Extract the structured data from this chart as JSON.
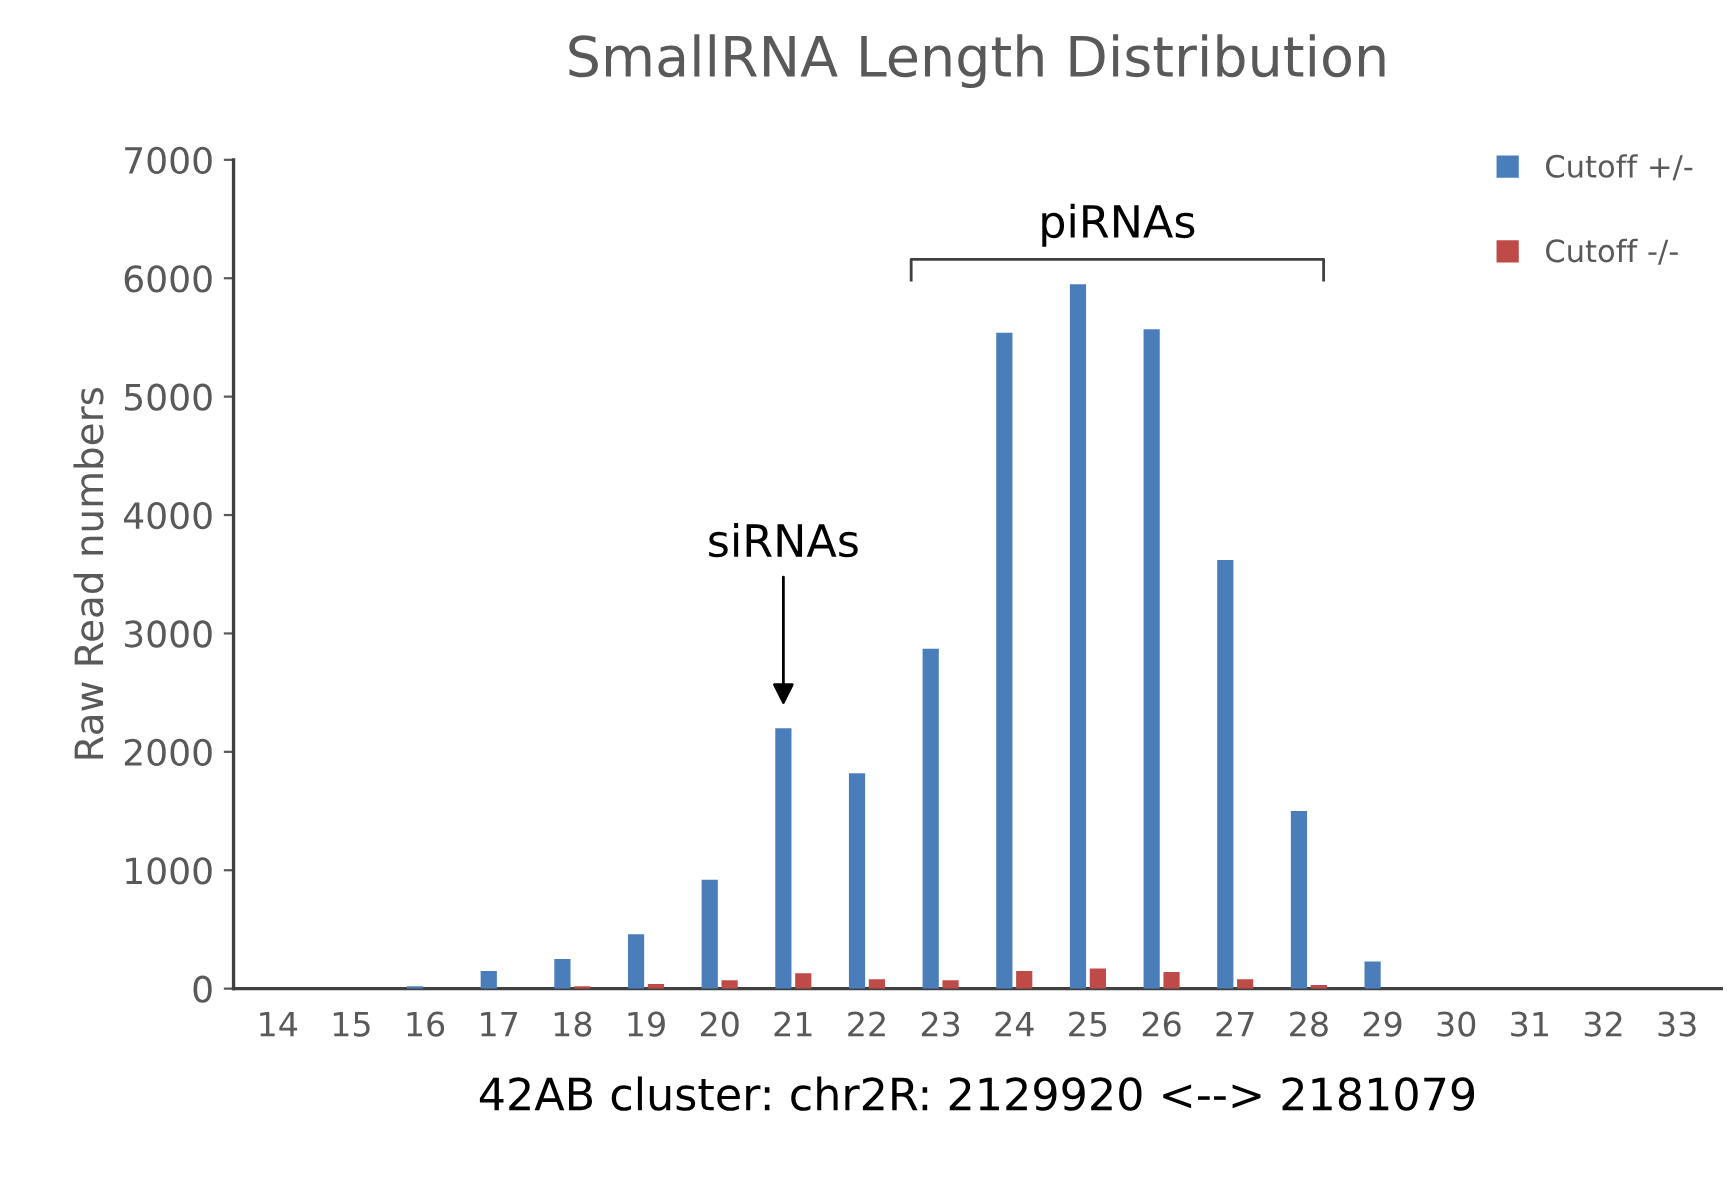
{
  "chart_data": {
    "type": "bar",
    "title": "SmallRNA Length Distribution",
    "xlabel": "42AB cluster: chr2R: 2129920 <--> 2181079",
    "ylabel": "Raw Read numbers",
    "categories": [
      "14",
      "15",
      "16",
      "17",
      "18",
      "19",
      "20",
      "21",
      "22",
      "23",
      "24",
      "25",
      "26",
      "27",
      "28",
      "29",
      "30",
      "31",
      "32",
      "33"
    ],
    "series": [
      {
        "name": "Cutoff +/-",
        "color": "#4a7ebb",
        "values": [
          0,
          0,
          20,
          150,
          250,
          460,
          920,
          2200,
          1820,
          2870,
          5540,
          5950,
          5570,
          3620,
          1500,
          230,
          0,
          0,
          0,
          0
        ]
      },
      {
        "name": "Cutoff -/-",
        "color": "#be4b48",
        "values": [
          0,
          0,
          0,
          0,
          20,
          40,
          70,
          130,
          80,
          70,
          150,
          170,
          140,
          80,
          30,
          0,
          0,
          0,
          0,
          0
        ]
      }
    ],
    "annotations": [
      "siRNAs",
      "piRNAs"
    ],
    "ylim": [
      0,
      7000
    ],
    "yticks": [
      0,
      1000,
      2000,
      3000,
      4000,
      5000,
      6000,
      7000
    ],
    "grid": false,
    "legend": "top right"
  }
}
